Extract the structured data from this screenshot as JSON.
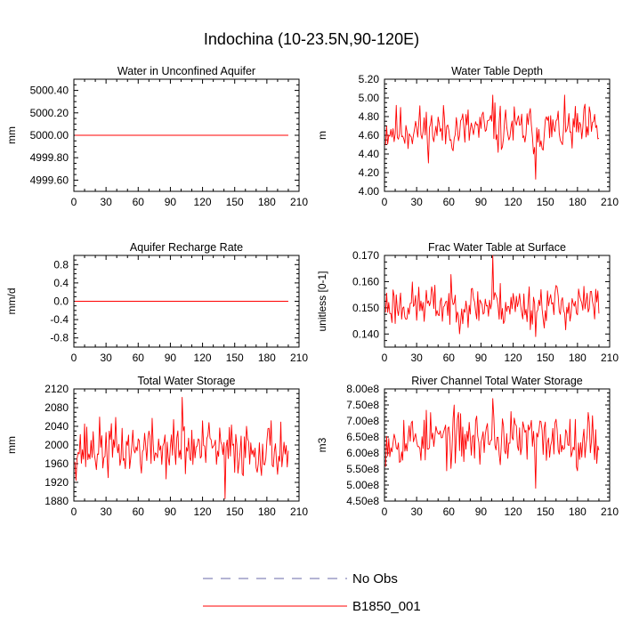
{
  "page": {
    "title": "Indochina (10-23.5N,90-120E)"
  },
  "legend": {
    "items": [
      {
        "label": "No Obs",
        "color": "#6a6aaa",
        "style": "dashed"
      },
      {
        "label": "B1850_001",
        "color": "#ff0000",
        "style": "solid"
      }
    ]
  },
  "chart_data": [
    {
      "type": "line",
      "title": "Water in Unconfined Aquifer",
      "ylabel": "mm",
      "xlim": [
        0,
        210
      ],
      "xticks": [
        0,
        30,
        60,
        90,
        120,
        150,
        180,
        210
      ],
      "ylim": [
        4999.5,
        5000.5
      ],
      "yticks": [
        4999.6,
        4999.8,
        5000.0,
        5000.2,
        5000.4
      ],
      "ytick_labels": [
        "4999.60",
        "4999.80",
        "5000.00",
        "5000.20",
        "5000.40"
      ],
      "series": [
        {
          "name": "B1850_001",
          "x_start": 1,
          "x_end": 200,
          "constant": 5000.0
        }
      ]
    },
    {
      "type": "line",
      "title": "Water Table Depth",
      "ylabel": "m",
      "xlim": [
        0,
        210
      ],
      "xticks": [
        0,
        30,
        60,
        90,
        120,
        150,
        180,
        210
      ],
      "ylim": [
        4.0,
        5.2
      ],
      "yticks": [
        4.0,
        4.2,
        4.4,
        4.6,
        4.8,
        5.0,
        5.2
      ],
      "ytick_labels": [
        "4.00",
        "4.20",
        "4.40",
        "4.60",
        "4.80",
        "5.00",
        "5.20"
      ],
      "series": [
        {
          "name": "B1850_001",
          "x_start": 1,
          "x_end": 200,
          "base": 4.66,
          "amp": 0.13,
          "min": 4.13,
          "max": 5.03,
          "seed": 11
        }
      ]
    },
    {
      "type": "line",
      "title": "Aquifer Recharge Rate",
      "ylabel": "mm/d",
      "xlim": [
        0,
        210
      ],
      "xticks": [
        0,
        30,
        60,
        90,
        120,
        150,
        180,
        210
      ],
      "ylim": [
        -1.0,
        1.0
      ],
      "yticks": [
        -0.8,
        -0.4,
        0.0,
        0.4,
        0.8
      ],
      "ytick_labels": [
        "-0.8",
        "-0.4",
        "0.0",
        "0.4",
        "0.8"
      ],
      "series": [
        {
          "name": "B1850_001",
          "x_start": 1,
          "x_end": 200,
          "constant": 0.0
        }
      ]
    },
    {
      "type": "line",
      "title": "Frac Water Table at Surface",
      "ylabel": "unitless [0-1]",
      "xlim": [
        0,
        210
      ],
      "xticks": [
        0,
        30,
        60,
        90,
        120,
        150,
        180,
        210
      ],
      "ylim": [
        0.135,
        0.17
      ],
      "yticks": [
        0.14,
        0.15,
        0.16,
        0.17
      ],
      "ytick_labels": [
        "0.140",
        "0.150",
        "0.160",
        "0.170"
      ],
      "series": [
        {
          "name": "B1850_001",
          "x_start": 1,
          "x_end": 200,
          "base": 0.151,
          "amp": 0.0042,
          "min": 0.139,
          "max": 0.17,
          "seed": 23
        }
      ]
    },
    {
      "type": "line",
      "title": "Total Water Storage",
      "ylabel": "mm",
      "xlim": [
        0,
        210
      ],
      "xticks": [
        0,
        30,
        60,
        90,
        120,
        150,
        180,
        210
      ],
      "ylim": [
        1880,
        2120
      ],
      "yticks": [
        1880,
        1920,
        1960,
        2000,
        2040,
        2080,
        2120
      ],
      "ytick_labels": [
        "1880",
        "1920",
        "1960",
        "2000",
        "2040",
        "2080",
        "2120"
      ],
      "series": [
        {
          "name": "B1850_001",
          "x_start": 1,
          "x_end": 200,
          "base": 1992,
          "amp": 30,
          "min": 1885,
          "max": 2102,
          "seed": 37
        }
      ]
    },
    {
      "type": "line",
      "title": "River Channel Total Water Storage",
      "ylabel": "m3",
      "xlim": [
        0,
        210
      ],
      "xticks": [
        0,
        30,
        60,
        90,
        120,
        150,
        180,
        210
      ],
      "ylim": [
        450000000,
        800000000
      ],
      "yticks": [
        450000000,
        500000000,
        550000000,
        600000000,
        650000000,
        700000000,
        750000000,
        800000000
      ],
      "ytick_labels": [
        "4.50e8",
        "5.00e8",
        "5.50e8",
        "6.00e8",
        "6.50e8",
        "7.00e8",
        "7.50e8",
        "8.00e8"
      ],
      "series": [
        {
          "name": "B1850_001",
          "x_start": 1,
          "x_end": 200,
          "base": 645000000,
          "amp": 42000000,
          "min": 490000000,
          "max": 770000000,
          "seed": 53
        }
      ]
    }
  ]
}
